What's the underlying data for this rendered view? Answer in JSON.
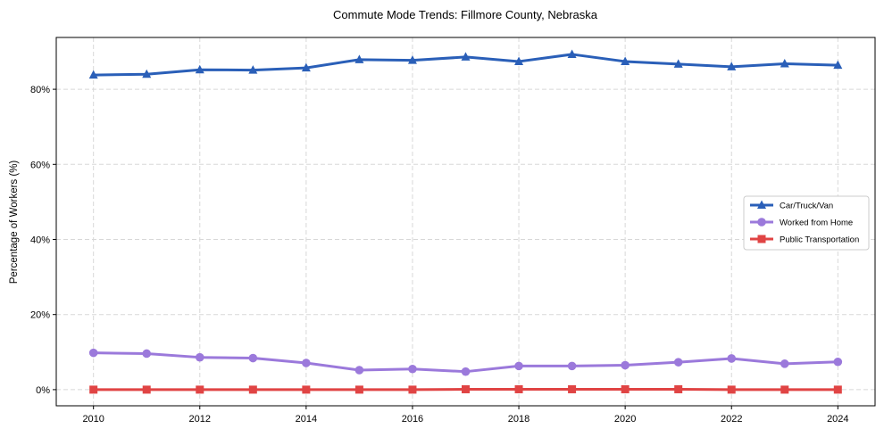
{
  "chart_data": {
    "type": "line",
    "title": "Commute Mode Trends: Fillmore County, Nebraska",
    "xlabel": "",
    "ylabel": "Percentage of Workers (%)",
    "x": [
      2010,
      2011,
      2012,
      2013,
      2014,
      2015,
      2016,
      2017,
      2018,
      2019,
      2020,
      2021,
      2022,
      2023,
      2024
    ],
    "xticks": [
      "2010",
      "2012",
      "2014",
      "2016",
      "2018",
      "2020",
      "2022",
      "2024"
    ],
    "yticks": [
      "0%",
      "20%",
      "40%",
      "60%",
      "80%"
    ],
    "ylim": [
      -4.3,
      93.8
    ],
    "xlim": [
      2009.3,
      2024.7
    ],
    "grid": true,
    "legend_position": "center-right",
    "series": [
      {
        "name": "Car/Truck/Van",
        "color": "#2a5fb8",
        "marker": "triangle",
        "values": [
          83.8,
          84.0,
          85.2,
          85.1,
          85.7,
          87.9,
          87.7,
          88.6,
          87.4,
          89.3,
          87.4,
          86.7,
          86.0,
          86.8,
          86.4
        ]
      },
      {
        "name": "Worked from Home",
        "color": "#9b79db",
        "marker": "circle",
        "values": [
          9.8,
          9.6,
          8.6,
          8.4,
          7.1,
          5.2,
          5.5,
          4.8,
          6.3,
          6.3,
          6.5,
          7.3,
          8.3,
          6.9,
          7.4
        ]
      },
      {
        "name": "Public Transportation",
        "color": "#e04444",
        "marker": "square",
        "values": [
          0.0,
          0.0,
          0.0,
          0.0,
          0.0,
          0.0,
          0.0,
          0.1,
          0.1,
          0.1,
          0.1,
          0.1,
          0.0,
          0.0,
          0.0
        ]
      }
    ]
  }
}
